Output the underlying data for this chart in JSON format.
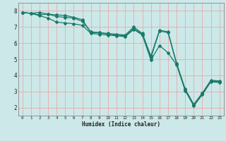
{
  "title": "",
  "xlabel": "Humidex (Indice chaleur)",
  "bg_color": "#cce8e8",
  "grid_color": "#e8aaaa",
  "line_color": "#1a7a6a",
  "marker_color": "#1a7a6a",
  "xlim": [
    -0.5,
    23.5
  ],
  "ylim": [
    1.5,
    8.5
  ],
  "xticks": [
    0,
    1,
    2,
    3,
    4,
    5,
    6,
    7,
    8,
    9,
    10,
    11,
    12,
    13,
    14,
    15,
    16,
    17,
    18,
    19,
    20,
    21,
    22,
    23
  ],
  "yticks": [
    2,
    3,
    4,
    5,
    6,
    7,
    8
  ],
  "line1_x": [
    0,
    1,
    2,
    3,
    4,
    5,
    6,
    7,
    8,
    9,
    10,
    11,
    12,
    13,
    14,
    15,
    16,
    17,
    18,
    19,
    20,
    21,
    22,
    23
  ],
  "line1_y": [
    7.9,
    7.85,
    7.9,
    7.8,
    7.75,
    7.72,
    7.6,
    7.45,
    6.65,
    6.65,
    6.6,
    6.55,
    6.5,
    7.0,
    6.6,
    5.2,
    6.8,
    6.7,
    4.75,
    3.15,
    2.2,
    2.9,
    3.7,
    3.65
  ],
  "line2_x": [
    0,
    1,
    2,
    3,
    4,
    5,
    6,
    7,
    8,
    9,
    10,
    11,
    12,
    13,
    14,
    15,
    16,
    17,
    18,
    19,
    20,
    21,
    22,
    23
  ],
  "line2_y": [
    7.9,
    7.85,
    7.75,
    7.8,
    7.65,
    7.6,
    7.55,
    7.35,
    6.7,
    6.65,
    6.55,
    6.5,
    6.45,
    6.9,
    6.55,
    5.1,
    6.75,
    6.65,
    4.7,
    3.1,
    2.15,
    2.85,
    3.65,
    3.6
  ],
  "line3_x": [
    0,
    1,
    2,
    3,
    4,
    5,
    6,
    7,
    8,
    9,
    10,
    11,
    12,
    13,
    14,
    15,
    16,
    17,
    18,
    19,
    20,
    21,
    22,
    23
  ],
  "line3_y": [
    7.9,
    7.85,
    7.7,
    7.55,
    7.3,
    7.25,
    7.2,
    7.1,
    6.6,
    6.55,
    6.5,
    6.45,
    6.4,
    6.85,
    6.5,
    4.95,
    5.85,
    5.4,
    4.65,
    3.05,
    2.1,
    2.8,
    3.6,
    3.55
  ]
}
